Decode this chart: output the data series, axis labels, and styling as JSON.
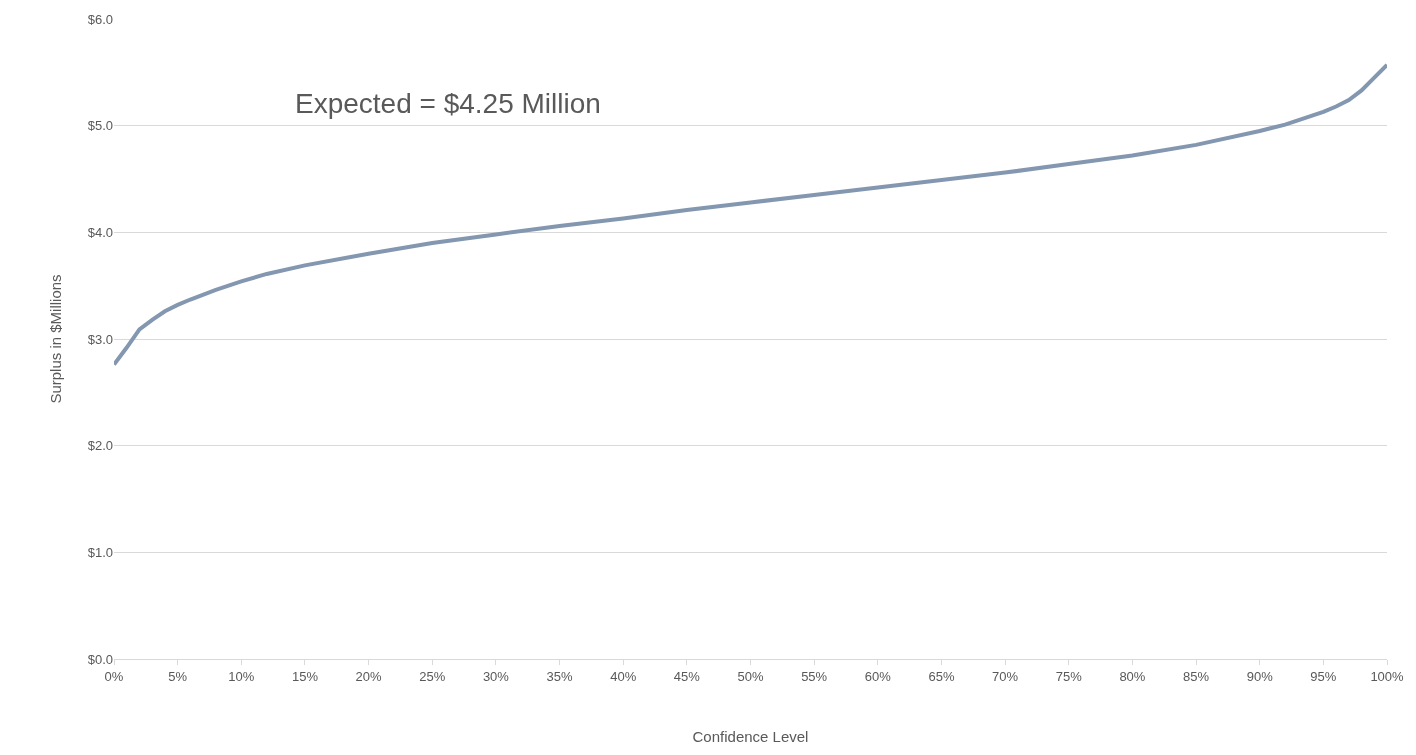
{
  "chart_data": {
    "type": "line",
    "xlabel": "Confidence Level",
    "ylabel": "Surplus in $Millions",
    "annotations": [
      "Expected = $4.25 Million"
    ],
    "x": [
      0,
      1,
      2,
      3,
      4,
      5,
      6,
      8,
      10,
      12,
      15,
      20,
      25,
      30,
      35,
      40,
      45,
      50,
      55,
      60,
      65,
      70,
      75,
      80,
      85,
      90,
      92,
      94,
      95,
      96,
      97,
      98,
      99,
      100
    ],
    "series": [
      {
        "color": "#8497b0",
        "values": [
          2.76,
          2.92,
          3.09,
          3.18,
          3.26,
          3.32,
          3.37,
          3.46,
          3.54,
          3.61,
          3.69,
          3.8,
          3.9,
          3.98,
          4.06,
          4.13,
          4.21,
          4.28,
          4.35,
          4.42,
          4.49,
          4.56,
          4.64,
          4.72,
          4.82,
          4.95,
          5.01,
          5.09,
          5.13,
          5.18,
          5.24,
          5.33,
          5.45,
          5.57
        ]
      }
    ],
    "xlim": [
      0,
      100
    ],
    "xticks": [
      {
        "value": 0,
        "label": "0%"
      },
      {
        "value": 5,
        "label": "5%"
      },
      {
        "value": 10,
        "label": "10%"
      },
      {
        "value": 15,
        "label": "15%"
      },
      {
        "value": 20,
        "label": "20%"
      },
      {
        "value": 25,
        "label": "25%"
      },
      {
        "value": 30,
        "label": "30%"
      },
      {
        "value": 35,
        "label": "35%"
      },
      {
        "value": 40,
        "label": "40%"
      },
      {
        "value": 45,
        "label": "45%"
      },
      {
        "value": 50,
        "label": "50%"
      },
      {
        "value": 55,
        "label": "55%"
      },
      {
        "value": 60,
        "label": "60%"
      },
      {
        "value": 65,
        "label": "65%"
      },
      {
        "value": 70,
        "label": "70%"
      },
      {
        "value": 75,
        "label": "75%"
      },
      {
        "value": 80,
        "label": "80%"
      },
      {
        "value": 85,
        "label": "85%"
      },
      {
        "value": 90,
        "label": "90%"
      },
      {
        "value": 95,
        "label": "95%"
      },
      {
        "value": 100,
        "label": "100%"
      }
    ],
    "ylim": [
      0,
      6
    ],
    "yticks": [
      {
        "value": 0,
        "label": "$0.0"
      },
      {
        "value": 1,
        "label": "$1.0"
      },
      {
        "value": 2,
        "label": "$2.0"
      },
      {
        "value": 3,
        "label": "$3.0"
      },
      {
        "value": 4,
        "label": "$4.0"
      },
      {
        "value": 5,
        "label": "$5.0"
      },
      {
        "value": 6,
        "label": "$6.0"
      }
    ],
    "grid": "y",
    "marker": "none",
    "line_style": "solid"
  }
}
